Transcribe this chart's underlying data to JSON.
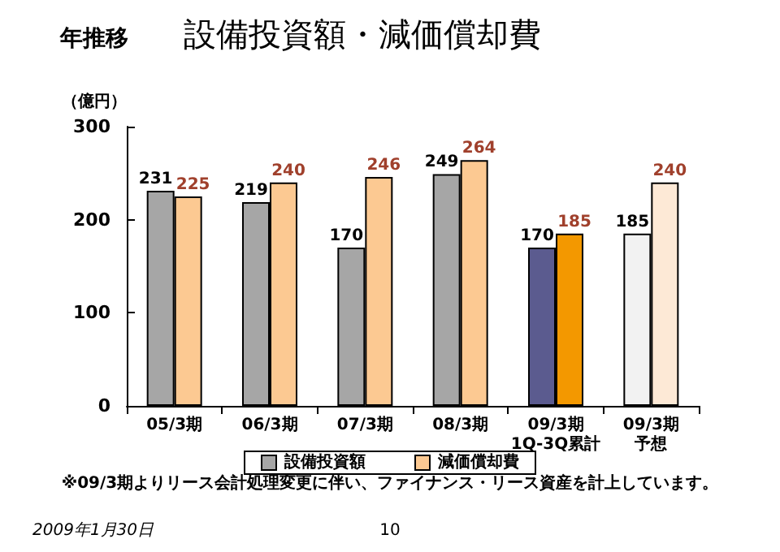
{
  "chart_data": {
    "type": "bar",
    "title": "設備投資額・減価償却費",
    "subtitle": "年推移",
    "ylabel": "（億円）",
    "categories": [
      "05/3期",
      "06/3期",
      "07/3期",
      "08/3期",
      "09/3期1Q-3Q累計",
      "09/3期予想"
    ],
    "series": [
      {
        "name": "設備投資額",
        "color": "#a6a6a6",
        "colors": [
          "#a6a6a6",
          "#a6a6a6",
          "#a6a6a6",
          "#a6a6a6",
          "#5b5b8f",
          "#f2f2f2"
        ],
        "values": [
          231,
          219,
          170,
          249,
          170,
          185
        ]
      },
      {
        "name": "減価償却費",
        "color": "#fcc992",
        "colors": [
          "#fcc992",
          "#fcc992",
          "#fcc992",
          "#fcc992",
          "#f39800",
          "#fde9d6"
        ],
        "values": [
          225,
          240,
          246,
          264,
          185,
          240
        ]
      }
    ],
    "ylim": [
      0,
      300
    ],
    "yticks": [
      0,
      100,
      200,
      300
    ],
    "grid": false,
    "legend": "bottom",
    "data_labels": true,
    "annotations": [
      "※09/3期よりリース会計処理変更に伴い、ファイナンス・リース資産を計上しています。",
      "2009年1月30日",
      "10"
    ]
  }
}
